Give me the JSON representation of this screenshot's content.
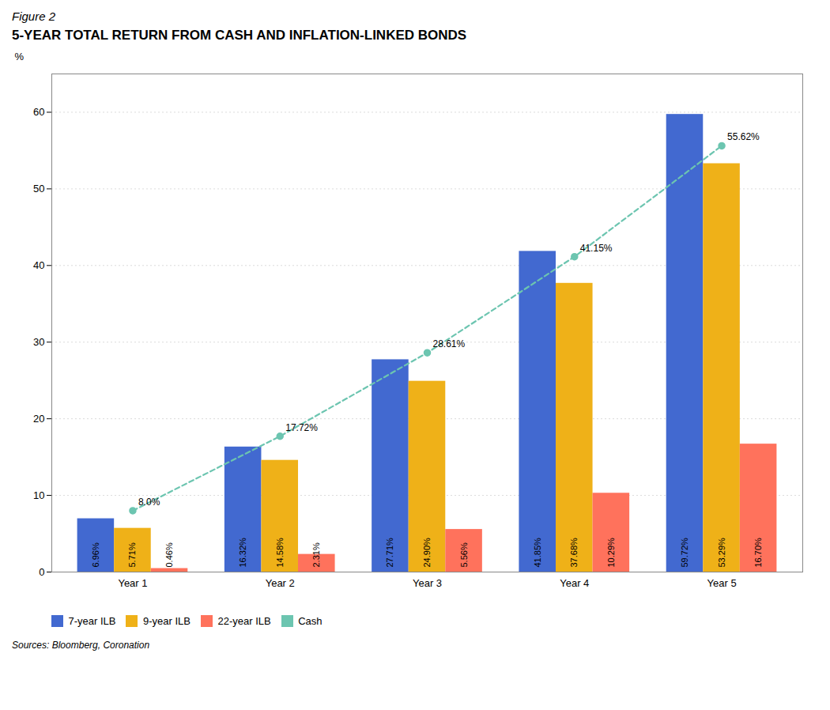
{
  "chart_data": {
    "type": "bar",
    "title": "5-YEAR TOTAL RETURN FROM CASH AND INFLATION-LINKED BONDS",
    "annotations": [
      "Figure 2",
      "Sources: Bloomberg, Coronation"
    ],
    "ylabel": "%",
    "categories": [
      "Year 1",
      "Year 2",
      "Year 3",
      "Year 4",
      "Year 5"
    ],
    "series": [
      {
        "name": "7-year ILB",
        "values": [
          6.96,
          16.32,
          27.71,
          41.85,
          59.72
        ],
        "value_labels": [
          "6.96%",
          "16.32%",
          "27.71%",
          "41.85%",
          "59.72%"
        ]
      },
      {
        "name": "9-year ILB",
        "values": [
          5.71,
          14.58,
          24.9,
          37.68,
          53.29
        ],
        "value_labels": [
          "5.71%",
          "14.58%",
          "24.90%",
          "37.68%",
          "53.29%"
        ]
      },
      {
        "name": "22-year ILB",
        "values": [
          0.46,
          2.31,
          5.56,
          10.29,
          16.7
        ],
        "value_labels": [
          "0.46%",
          "2.31%",
          "5.56%",
          "10.29%",
          "16.70%"
        ]
      },
      {
        "name": "Cash",
        "type": "line",
        "marker": "circle",
        "line_style": "dashed",
        "values": [
          8.0,
          17.72,
          28.61,
          41.15,
          55.62
        ],
        "value_labels": [
          "8.0%",
          "17.72%",
          "28.61%",
          "41.15%",
          "55.62%"
        ]
      }
    ],
    "ylim": [
      0,
      65
    ],
    "yticks": [
      0,
      10,
      20,
      30,
      40,
      50,
      60
    ],
    "grid": true,
    "legend": "bottom",
    "data_labels": true
  }
}
